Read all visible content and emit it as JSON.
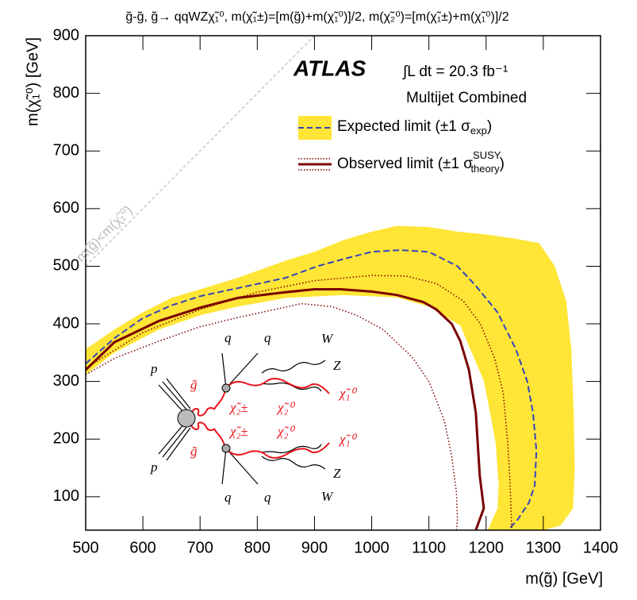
{
  "chart_data": {
    "type": "line",
    "title": "g̃-g̃, g̃→ qqWZχ̃₁⁰, m(χ̃₁±)=[m(g̃)+m(χ̃₁⁰)]/2, m(χ̃₂⁰)=[m(χ̃₁±)+m(χ̃₁⁰)]/2",
    "x_label": "m(g̃) [GeV]",
    "y_label": "m(χ̃₁⁰) [GeV]",
    "experiment": "ATLAS",
    "luminosity": "∫L dt = 20.3 fb⁻¹",
    "analysis": "Multijet Combined",
    "xlim": [
      500,
      1400
    ],
    "ylim": [
      42,
      900
    ],
    "xticks": [
      500,
      600,
      700,
      800,
      900,
      1000,
      1100,
      1200,
      1300,
      1400
    ],
    "yticks": [
      100,
      200,
      300,
      400,
      500,
      600,
      700,
      800,
      900
    ],
    "legend": [
      {
        "text": "Expected limit (±1 σ",
        "sub": "exp",
        "close": ")"
      },
      {
        "text": "Observed limit (±1 σ",
        "sup": "SUSY",
        "sub": "theory",
        "close": ")"
      }
    ],
    "reference_line": {
      "label": "m(g̃)<m(χ̃₁⁰)",
      "color": "#bbbbbb",
      "x": [
        500,
        900
      ],
      "y": [
        500,
        900
      ]
    },
    "band": {
      "color": "#ffe535",
      "x_upper": [
        500,
        550,
        600,
        650,
        700,
        766,
        850,
        900,
        950,
        1000,
        1044,
        1100,
        1150,
        1200,
        1250,
        1293,
        1320,
        1340,
        1349,
        1353,
        1355,
        1352,
        1330,
        1300
      ],
      "upper": [
        356,
        390,
        420,
        445,
        460,
        480,
        510,
        525,
        545,
        560,
        570,
        568,
        560,
        555,
        548,
        540,
        500,
        440,
        356,
        250,
        150,
        80,
        50,
        42
      ],
      "x_lower": [
        500,
        550,
        628,
        700,
        766,
        850,
        950,
        1044,
        1100,
        1155,
        1196,
        1210,
        1217,
        1222,
        1220,
        1203
      ],
      "lower": [
        312,
        350,
        390,
        415,
        430,
        445,
        450,
        446,
        430,
        397,
        301,
        230,
        191,
        120,
        80,
        42
      ]
    },
    "series": [
      {
        "color": "#3344bb",
        "dash": "dashed",
        "width": 2,
        "x": [
          500,
          550,
          600,
          650,
          700,
          766,
          850,
          905,
          960,
          1000,
          1050,
          1100,
          1150,
          1182,
          1220,
          1252,
          1272,
          1282,
          1288,
          1285,
          1275,
          1255,
          1238
        ],
        "y": [
          331,
          375,
          410,
          432,
          448,
          462,
          480,
          500,
          515,
          525,
          528,
          525,
          500,
          466,
          420,
          356,
          300,
          246,
          180,
          120,
          90,
          60,
          42
        ]
      },
      {
        "color": "#7a0000",
        "dash": "solid",
        "width": 3,
        "x": [
          500,
          550,
          628,
          700,
          766,
          850,
          900,
          946,
          1000,
          1044,
          1090,
          1113,
          1140,
          1155,
          1170,
          1182,
          1189,
          1196,
          1182
        ],
        "y": [
          320,
          368,
          405,
          428,
          445,
          455,
          460,
          460,
          456,
          450,
          438,
          425,
          400,
          370,
          320,
          246,
          136,
          80,
          42
        ]
      },
      {
        "color": "#7a0000",
        "dash": "dotted",
        "width": 1.5,
        "x": [
          500,
          600,
          700,
          800,
          900,
          1000,
          1060,
          1113,
          1160,
          1190,
          1215,
          1230,
          1238,
          1242,
          1245
        ],
        "y": [
          323,
          385,
          425,
          455,
          475,
          484,
          483,
          470,
          440,
          400,
          340,
          280,
          190,
          120,
          42
        ]
      },
      {
        "color": "#7a0000",
        "dash": "dotted",
        "width": 1.5,
        "x": [
          500,
          550,
          628,
          700,
          766,
          877,
          930,
          974,
          1020,
          1071,
          1100,
          1127,
          1140,
          1148,
          1150,
          1148
        ],
        "y": [
          312,
          340,
          370,
          395,
          411,
          435,
          430,
          415,
          390,
          342,
          300,
          232,
          170,
          108,
          60,
          42
        ]
      }
    ]
  },
  "diagram": {
    "labels": [
      "q",
      "q",
      "W",
      "Z",
      "p",
      "g̃",
      "χ̃₂±",
      "χ̃₂⁰",
      "χ̃₁⁰",
      "p",
      "g̃",
      "χ̃₂±",
      "χ̃₂⁰",
      "χ̃₁⁰",
      "Z",
      "W",
      "q",
      "q"
    ]
  }
}
